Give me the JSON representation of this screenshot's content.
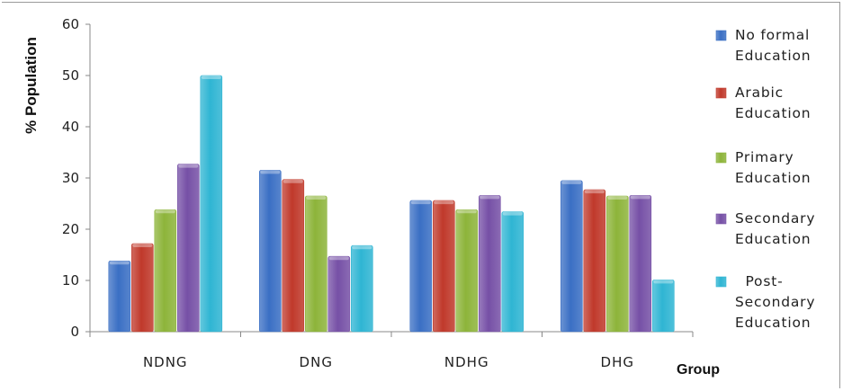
{
  "chart_data": {
    "type": "bar",
    "title": "",
    "xlabel": "Group",
    "ylabel": "% Population",
    "ylim": [
      0,
      60
    ],
    "yticks": [
      0,
      10,
      20,
      30,
      40,
      50,
      60
    ],
    "categories": [
      "NDNG",
      "DNG",
      "NDHG",
      "DHG"
    ],
    "grid": false,
    "legend_position": "right",
    "series": [
      {
        "name": [
          "No formal",
          "Education"
        ],
        "color": "#3a6fc4",
        "values": [
          13.8,
          31.5,
          25.6,
          29.5
        ]
      },
      {
        "name": [
          "Arabic",
          "Education"
        ],
        "color": "#c0392b",
        "values": [
          17.2,
          29.7,
          25.6,
          27.7
        ]
      },
      {
        "name": [
          "Primary",
          "Education"
        ],
        "color": "#8db43a",
        "values": [
          23.8,
          26.5,
          23.8,
          26.5
        ]
      },
      {
        "name": [
          "Secondary",
          "Education"
        ],
        "color": "#7650a6",
        "values": [
          32.7,
          14.7,
          26.6,
          26.6
        ]
      },
      {
        "name": [
          "  Post-",
          "Secondary",
          "Education"
        ],
        "color": "#2fb5d3",
        "values": [
          50.0,
          16.8,
          23.4,
          10.1
        ]
      }
    ]
  }
}
